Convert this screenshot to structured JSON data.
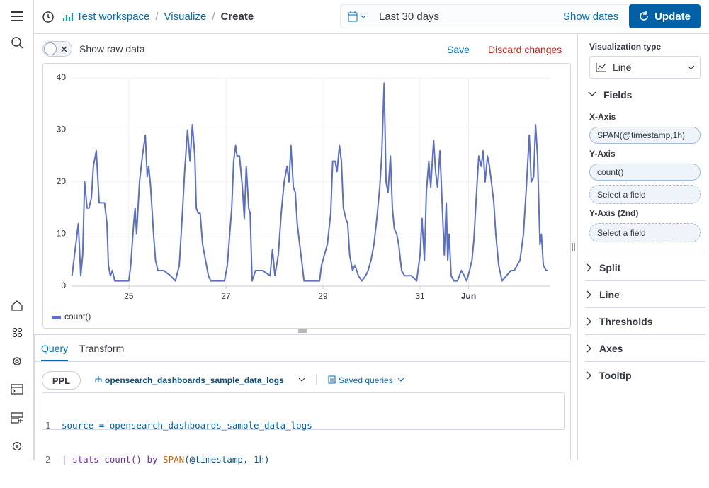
{
  "header": {
    "breadcrumbs": [
      "Test workspace",
      "Visualize",
      "Create"
    ],
    "date_range": "Last 30 days",
    "show_dates": "Show dates",
    "update": "Update"
  },
  "toolbar": {
    "raw_toggle": "Show raw data",
    "save": "Save",
    "discard": "Discard changes"
  },
  "chart_data": {
    "type": "line",
    "x": [
      23.83,
      23.96,
      24.01,
      24.05,
      24.09,
      24.14,
      24.18,
      24.23,
      24.27,
      24.33,
      24.39,
      24.45,
      24.5,
      24.55,
      24.58,
      24.62,
      24.66,
      24.71,
      24.87,
      25.0,
      25.04,
      25.1,
      25.13,
      25.16,
      25.22,
      25.28,
      25.34,
      25.38,
      25.41,
      25.45,
      25.51,
      25.55,
      25.6,
      25.72,
      25.86,
      25.96,
      26.04,
      26.11,
      26.15,
      26.21,
      26.26,
      26.31,
      26.36,
      26.39,
      26.43,
      26.47,
      26.52,
      26.58,
      26.64,
      26.69,
      26.88,
      26.97,
      27.03,
      27.12,
      27.16,
      27.2,
      27.23,
      27.28,
      27.34,
      27.38,
      27.42,
      27.47,
      27.5,
      27.54,
      27.61,
      27.76,
      27.91,
      27.96,
      28.01,
      28.08,
      28.14,
      28.2,
      28.26,
      28.3,
      28.34,
      28.39,
      28.43,
      28.47,
      28.52,
      28.56,
      28.61,
      28.78,
      28.93,
      28.97,
      29.03,
      29.09,
      29.16,
      29.2,
      29.25,
      29.29,
      29.34,
      29.38,
      29.42,
      29.47,
      29.51,
      29.55,
      29.61,
      29.66,
      29.73,
      29.8,
      29.88,
      29.93,
      29.99,
      30.05,
      30.11,
      30.17,
      30.21,
      30.26,
      30.3,
      30.34,
      30.39,
      30.43,
      30.47,
      30.52,
      30.56,
      30.62,
      30.68,
      30.82,
      30.93,
      31.0,
      31.04,
      31.09,
      31.13,
      31.18,
      31.22,
      31.28,
      31.32,
      31.36,
      31.41,
      31.45,
      31.5,
      31.54,
      31.57,
      31.6,
      31.64,
      31.7,
      31.77,
      31.85,
      31.91,
      31.96,
      32.02,
      32.07,
      32.11,
      32.17,
      32.21,
      32.26,
      32.3,
      32.34,
      32.39,
      32.43,
      32.47,
      32.52,
      32.56,
      32.62,
      32.69,
      32.78,
      32.87,
      32.94,
      33.06,
      33.13,
      33.19,
      33.25,
      33.29,
      33.34,
      33.38,
      33.42,
      33.47,
      33.5,
      33.54,
      33.6,
      33.64
    ],
    "series": [
      {
        "name": "count()",
        "color": "#5b6fc6",
        "values": [
          2,
          12,
          2,
          6,
          20,
          15,
          15,
          17,
          23,
          26,
          16,
          16,
          16,
          12,
          4,
          2,
          3,
          1,
          1,
          1,
          4,
          12,
          15,
          10,
          20,
          25,
          29,
          21,
          23,
          19,
          10,
          5,
          3,
          3,
          2,
          1,
          4,
          15,
          22,
          30,
          24,
          31,
          25,
          15,
          14,
          14,
          8,
          5,
          2,
          1,
          1,
          1,
          4,
          15,
          24,
          27,
          25,
          25,
          19,
          13,
          23,
          15,
          14,
          1,
          3,
          3,
          2,
          7,
          2,
          6,
          14,
          20,
          23,
          20,
          27,
          19,
          18,
          12,
          8,
          5,
          1,
          1,
          1,
          4,
          6,
          8,
          14,
          24,
          24,
          22,
          27,
          24,
          15,
          13,
          12,
          6,
          3,
          4,
          2,
          1,
          2,
          3,
          5,
          8,
          13,
          19,
          25,
          39,
          20,
          18,
          25,
          15,
          11,
          10,
          8,
          3,
          2,
          2,
          1,
          6,
          13,
          5,
          18,
          24,
          19,
          28,
          22,
          19,
          26,
          17,
          6,
          16,
          5,
          10,
          2,
          1,
          1,
          3,
          2,
          1,
          3,
          5,
          9,
          19,
          25,
          23,
          26,
          20,
          25,
          23,
          20,
          16,
          10,
          4,
          1,
          2,
          3,
          3,
          5,
          10,
          19,
          29,
          20,
          21,
          31,
          25,
          8,
          10,
          4,
          3,
          3
        ]
      }
    ],
    "xlim": [
      23.82,
      33.67
    ],
    "xticks": [
      {
        "value": 25,
        "label": "25"
      },
      {
        "value": 27,
        "label": "27"
      },
      {
        "value": 29,
        "label": "29"
      },
      {
        "value": 31,
        "label": "31"
      },
      {
        "value": 32,
        "label": "Jun"
      }
    ],
    "ylim": [
      0,
      40
    ],
    "yticks": [
      0,
      10,
      20,
      30,
      40
    ],
    "grid": true,
    "legend": "bottom-left"
  },
  "query": {
    "tabs": [
      "Query",
      "Transform"
    ],
    "language": "PPL",
    "index": "opensearch_dashboards_sample_data_logs",
    "saved": "Saved queries",
    "lines": [
      {
        "number": "1",
        "tokens": [
          "source",
          "=",
          "opensearch_dashboards_sample_data_logs"
        ]
      },
      {
        "number": "2",
        "tokens": [
          "|",
          "stats",
          "count()",
          "by",
          "SPAN",
          "(@timestamp, 1h)"
        ]
      }
    ]
  },
  "sidebar": {
    "type_label": "Visualization type",
    "type": "Line",
    "fields": "Fields",
    "x_axis": "X-Axis",
    "x_field": "SPAN(@timestamp,1h)",
    "y_axis": "Y-Axis",
    "y_field": "count()",
    "y_select": "Select a field",
    "y2_axis": "Y-Axis (2nd)",
    "y2_select": "Select a field",
    "sections": [
      "Split",
      "Line",
      "Thresholds",
      "Axes",
      "Tooltip"
    ]
  }
}
